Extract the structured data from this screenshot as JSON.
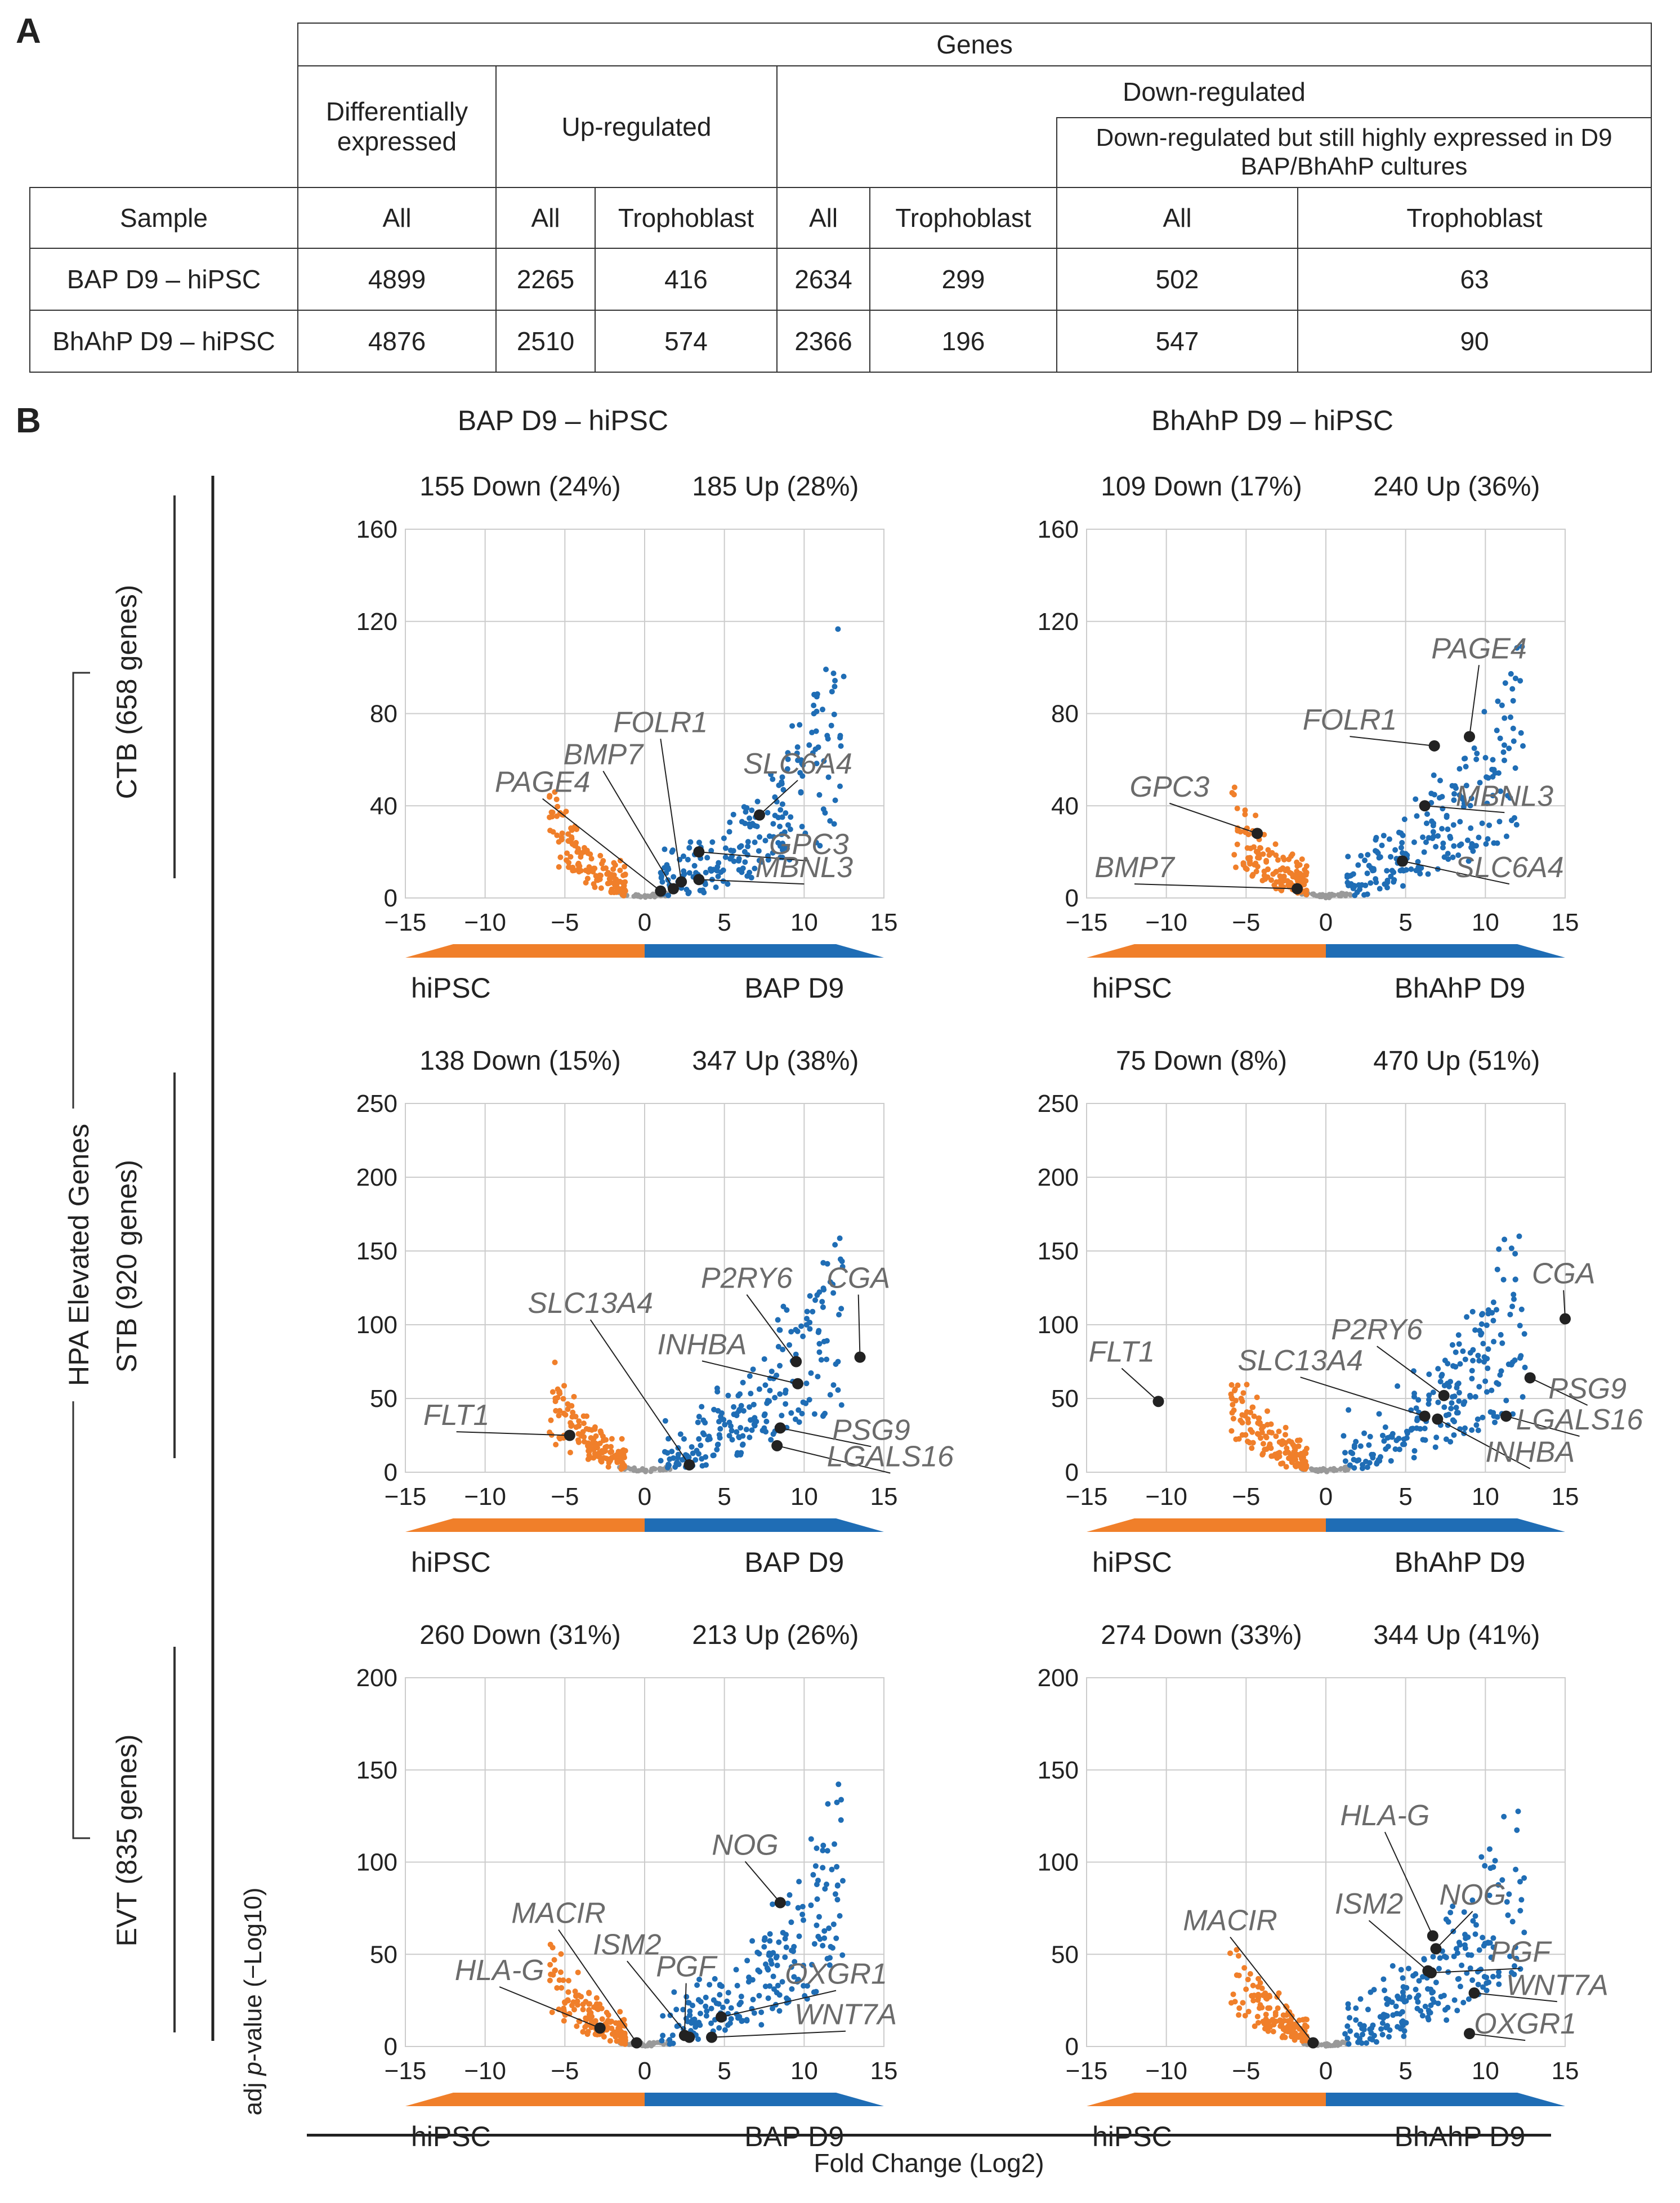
{
  "panel_a": {
    "letter": "A",
    "header_genes": "Genes",
    "header_de": "Differentially expressed",
    "header_up": "Up-regulated",
    "header_down": "Down-regulated",
    "header_down_high": "Down-regulated but still highly expressed in D9 BAP/BhAhP cultures",
    "col_sample": "Sample",
    "col_labels": [
      "All",
      "All",
      "Trophoblast",
      "All",
      "Trophoblast",
      "All",
      "Trophoblast"
    ],
    "rows": [
      {
        "sample": "BAP D9 – hiPSC",
        "values": [
          "4899",
          "2265",
          "416",
          "2634",
          "299",
          "502",
          "63"
        ]
      },
      {
        "sample": "BhAhP D9 – hiPSC",
        "values": [
          "4876",
          "2510",
          "574",
          "2366",
          "196",
          "547",
          "90"
        ]
      }
    ]
  },
  "panel_b": {
    "letter": "B",
    "col_titles": [
      "BAP D9 – hiPSC",
      "BhAhP D9 – hiPSC"
    ],
    "row_labels": [
      "CTB (658 genes)",
      "STB (920 genes)",
      "EVT (835 genes)"
    ],
    "group_label": "HPA Elevated Genes",
    "y_label_prefix": "adj ",
    "y_label_italic": "p",
    "y_label_suffix": "-value (−Log10)",
    "x_label": "Fold Change (Log2)"
  },
  "colors": {
    "down": "#f07f2a",
    "up": "#1f6db5",
    "neutral": "#999999",
    "highlight": "#222222",
    "label": "#6b6b6b",
    "grid": "#cccccc"
  },
  "chart_data": [
    {
      "type": "scatter",
      "id": "ctb-bap",
      "down_text": "155 Down (24%)",
      "up_text": "185 Up (28%)",
      "xlim": [
        -15,
        15
      ],
      "ylim": [
        0,
        160
      ],
      "yticks": [
        0,
        40,
        80,
        120,
        160
      ],
      "xticks": [
        -15,
        -10,
        -5,
        0,
        5,
        10,
        15
      ],
      "left_label": "hiPSC",
      "right_label": "BAP D9",
      "genes": [
        {
          "name": "PAGE4",
          "x": 1.0,
          "y": 3,
          "lx": -6.4,
          "ly": 46
        },
        {
          "name": "BMP7",
          "x": 1.8,
          "y": 4,
          "lx": -2.6,
          "ly": 58
        },
        {
          "name": "FOLR1",
          "x": 2.3,
          "y": 7,
          "lx": 1.0,
          "ly": 72
        },
        {
          "name": "SLC6A4",
          "x": 7.2,
          "y": 36,
          "lx": 9.6,
          "ly": 54
        },
        {
          "name": "GPC3",
          "x": 3.4,
          "y": 20,
          "lx": 10.3,
          "ly": 19
        },
        {
          "name": "MBNL3",
          "x": 3.4,
          "y": 8,
          "lx": 10.0,
          "ly": 9
        }
      ]
    },
    {
      "type": "scatter",
      "id": "ctb-bhahp",
      "down_text": "109 Down (17%)",
      "up_text": "240 Up (36%)",
      "xlim": [
        -15,
        15
      ],
      "ylim": [
        0,
        160
      ],
      "yticks": [
        0,
        40,
        80,
        120,
        160
      ],
      "xticks": [
        -15,
        -10,
        -5,
        0,
        5,
        10,
        15
      ],
      "left_label": "hiPSC",
      "right_label": "BhAhP D9",
      "genes": [
        {
          "name": "PAGE4",
          "x": 9.0,
          "y": 70,
          "lx": 9.6,
          "ly": 104
        },
        {
          "name": "FOLR1",
          "x": 6.8,
          "y": 66,
          "lx": 1.5,
          "ly": 73
        },
        {
          "name": "GPC3",
          "x": -4.3,
          "y": 28,
          "lx": -9.8,
          "ly": 44
        },
        {
          "name": "MBNL3",
          "x": 6.2,
          "y": 40,
          "lx": 11.2,
          "ly": 40
        },
        {
          "name": "BMP7",
          "x": -1.8,
          "y": 4,
          "lx": -12.0,
          "ly": 9
        },
        {
          "name": "SLC6A4",
          "x": 4.8,
          "y": 16,
          "lx": 11.5,
          "ly": 9
        }
      ]
    },
    {
      "type": "scatter",
      "id": "stb-bap",
      "down_text": "138 Down (15%)",
      "up_text": "347 Up (38%)",
      "xlim": [
        -15,
        15
      ],
      "ylim": [
        0,
        250
      ],
      "yticks": [
        0,
        50,
        100,
        150,
        200,
        250
      ],
      "xticks": [
        -15,
        -10,
        -5,
        0,
        5,
        10,
        15
      ],
      "left_label": "hiPSC",
      "right_label": "BAP D9",
      "genes": [
        {
          "name": "CGA",
          "x": 13.5,
          "y": 78,
          "lx": 13.4,
          "ly": 125
        },
        {
          "name": "P2RY6",
          "x": 9.5,
          "y": 75,
          "lx": 6.4,
          "ly": 125
        },
        {
          "name": "SLC13A4",
          "x": 2.8,
          "y": 5,
          "lx": -3.4,
          "ly": 108
        },
        {
          "name": "INHBA",
          "x": 9.6,
          "y": 60,
          "lx": 3.6,
          "ly": 80
        },
        {
          "name": "FLT1",
          "x": -4.7,
          "y": 25,
          "lx": -11.8,
          "ly": 32
        },
        {
          "name": "PSG9",
          "x": 8.5,
          "y": 30,
          "lx": 14.2,
          "ly": 22
        },
        {
          "name": "LGALS16",
          "x": 8.3,
          "y": 18,
          "lx": 15.4,
          "ly": 4
        }
      ]
    },
    {
      "type": "scatter",
      "id": "stb-bhahp",
      "down_text": "75 Down (8%)",
      "up_text": "470 Up (51%)",
      "xlim": [
        -15,
        15
      ],
      "ylim": [
        0,
        250
      ],
      "yticks": [
        0,
        50,
        100,
        150,
        200,
        250
      ],
      "xticks": [
        -15,
        -10,
        -5,
        0,
        5,
        10,
        15
      ],
      "left_label": "hiPSC",
      "right_label": "BhAhP D9",
      "genes": [
        {
          "name": "CGA",
          "x": 15.0,
          "y": 104,
          "lx": 14.9,
          "ly": 128
        },
        {
          "name": "FLT1",
          "x": -10.5,
          "y": 48,
          "lx": -12.8,
          "ly": 75
        },
        {
          "name": "P2RY6",
          "x": 7.4,
          "y": 52,
          "lx": 3.2,
          "ly": 90
        },
        {
          "name": "SLC13A4",
          "x": 6.2,
          "y": 38,
          "lx": -1.6,
          "ly": 69
        },
        {
          "name": "PSG9",
          "x": 12.8,
          "y": 64,
          "lx": 16.4,
          "ly": 50
        },
        {
          "name": "LGALS16",
          "x": 11.3,
          "y": 38,
          "lx": 15.9,
          "ly": 29
        },
        {
          "name": "INHBA",
          "x": 7.0,
          "y": 36,
          "lx": 12.8,
          "ly": 7
        }
      ]
    },
    {
      "type": "scatter",
      "id": "evt-bap",
      "down_text": "260 Down (31%)",
      "up_text": "213 Up (26%)",
      "xlim": [
        -15,
        15
      ],
      "ylim": [
        0,
        200
      ],
      "yticks": [
        0,
        50,
        100,
        150,
        200
      ],
      "xticks": [
        -15,
        -10,
        -5,
        0,
        5,
        10,
        15
      ],
      "left_label": "hiPSC",
      "right_label": "BAP D9",
      "genes": [
        {
          "name": "NOG",
          "x": 8.5,
          "y": 78,
          "lx": 6.3,
          "ly": 104
        },
        {
          "name": "MACIR",
          "x": -0.5,
          "y": 2,
          "lx": -5.4,
          "ly": 67
        },
        {
          "name": "ISM2",
          "x": 2.8,
          "y": 5,
          "lx": -1.1,
          "ly": 50
        },
        {
          "name": "PGF",
          "x": 2.5,
          "y": 6,
          "lx": 2.6,
          "ly": 38
        },
        {
          "name": "HLA-G",
          "x": -2.8,
          "y": 10,
          "lx": -9.1,
          "ly": 36
        },
        {
          "name": "OXGR1",
          "x": 4.8,
          "y": 16,
          "lx": 12.0,
          "ly": 34
        },
        {
          "name": "WNT7A",
          "x": 4.2,
          "y": 5,
          "lx": 12.6,
          "ly": 12
        }
      ]
    },
    {
      "type": "scatter",
      "id": "evt-bhahp",
      "down_text": "274 Down (33%)",
      "up_text": "344 Up (41%)",
      "xlim": [
        -15,
        15
      ],
      "ylim": [
        0,
        200
      ],
      "yticks": [
        0,
        50,
        100,
        150,
        200
      ],
      "xticks": [
        -15,
        -10,
        -5,
        0,
        5,
        10,
        15
      ],
      "left_label": "hiPSC",
      "right_label": "BhAhP D9",
      "genes": [
        {
          "name": "HLA-G",
          "x": 6.7,
          "y": 60,
          "lx": 3.7,
          "ly": 120
        },
        {
          "name": "MACIR",
          "x": -0.8,
          "y": 2,
          "lx": -6.0,
          "ly": 63
        },
        {
          "name": "ISM2",
          "x": 6.4,
          "y": 41,
          "lx": 2.7,
          "ly": 72
        },
        {
          "name": "NOG",
          "x": 6.9,
          "y": 53,
          "lx": 9.2,
          "ly": 77
        },
        {
          "name": "PGF",
          "x": 6.6,
          "y": 40,
          "lx": 12.2,
          "ly": 46
        },
        {
          "name": "WNT7A",
          "x": 9.3,
          "y": 29,
          "lx": 14.5,
          "ly": 28
        },
        {
          "name": "OXGR1",
          "x": 9.0,
          "y": 7,
          "lx": 12.5,
          "ly": 7
        }
      ]
    }
  ]
}
